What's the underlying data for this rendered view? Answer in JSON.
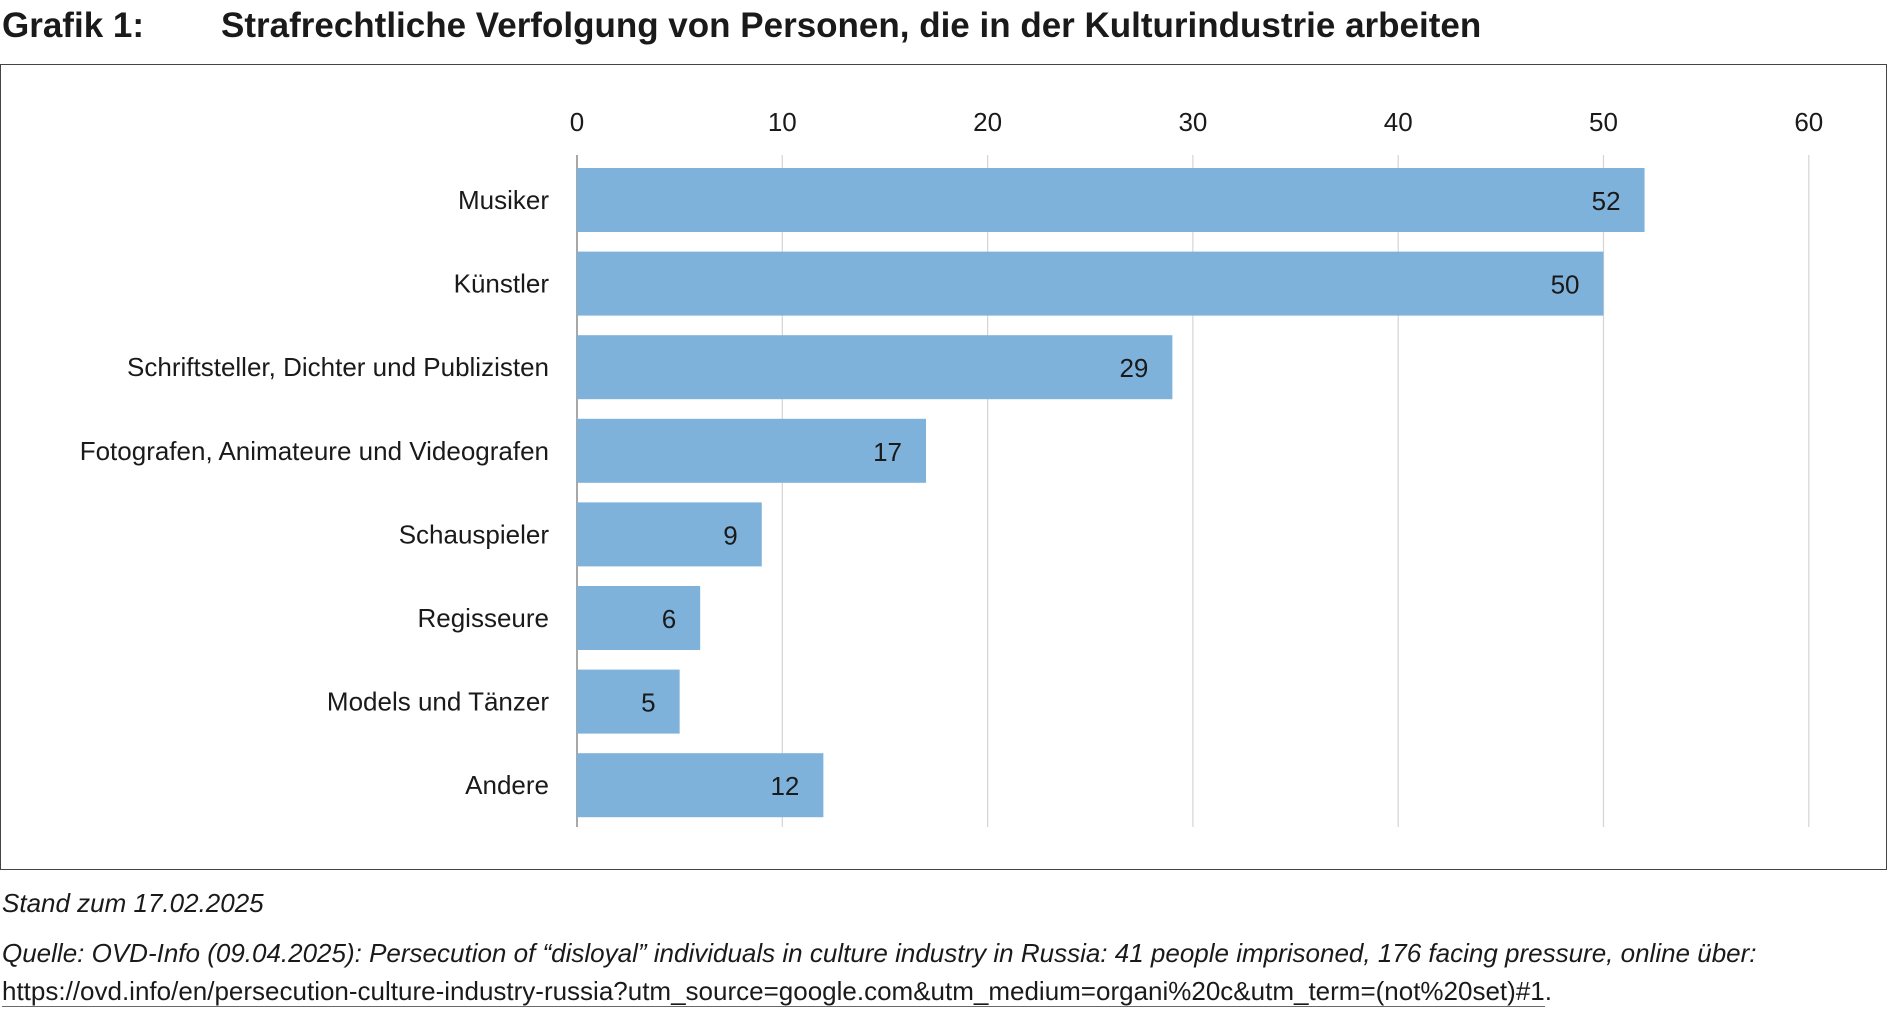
{
  "header": {
    "figure_number": "Grafik 1:",
    "title": "Strafrechtliche Verfolgung von Personen, die in der Kulturindustrie arbeiten"
  },
  "chart_data": {
    "type": "bar",
    "orientation": "horizontal",
    "categories": [
      "Musiker",
      "Künstler",
      "Schriftsteller, Dichter und Publizisten",
      "Fotografen, Animateure und Videografen",
      "Schauspieler",
      "Regisseure",
      "Models und Tänzer",
      "Andere"
    ],
    "values": [
      52,
      50,
      29,
      17,
      9,
      6,
      5,
      12
    ],
    "xlim": [
      0,
      60
    ],
    "ticks": [
      0,
      10,
      20,
      30,
      40,
      50,
      60
    ],
    "tick_labels": [
      "0",
      "10",
      "20",
      "30",
      "40",
      "50",
      "60"
    ],
    "x_axis_position": "top",
    "grid": true,
    "data_labels": true,
    "colors": {
      "bar": "#7fb2da",
      "grid": "#d4d4d4",
      "axis": "#8c8c8c"
    }
  },
  "notes": {
    "stand": "Stand zum 17.02.2025",
    "source_text": "Quelle: OVD-Info (09.04.2025): Persecution of “disloyal” individuals in culture industry in Russia: 41 people imprisoned, 176 facing pressure, online über: ",
    "source_link": "https://ovd.info/en/persecution-culture-industry-russia?utm_source=google.com&utm_medium=organi%20c&utm_term=(not%20set)#1",
    "source_end": "."
  }
}
